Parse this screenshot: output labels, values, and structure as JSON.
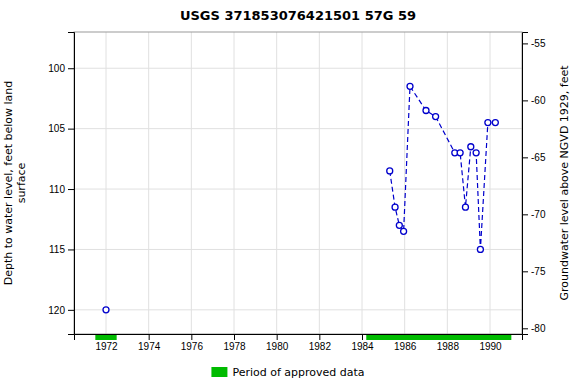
{
  "chart_data": {
    "type": "line",
    "title": "USGS 371853076421501 57G 59",
    "ylabel": "Depth to water level, feet below land\nsurface",
    "y2label": "Groundwater level above NGVD 1929, feet",
    "xlim": [
      1970.5,
      1991.5
    ],
    "ylim": [
      122.0,
      97.0
    ],
    "y2lim": [
      -80.5,
      -54.0
    ],
    "xticks": [
      1972,
      1974,
      1976,
      1978,
      1980,
      1982,
      1984,
      1986,
      1988,
      1990
    ],
    "yticks": [
      100,
      105,
      110,
      115,
      120
    ],
    "y2ticks": [
      -55,
      -60,
      -65,
      -70,
      -75,
      -80
    ],
    "grid": true,
    "legend": "bottom",
    "series": [
      {
        "x": [
          1972.0
        ],
        "values": [
          120.0
        ],
        "color": "#0000CC",
        "marker": "circle",
        "line_style": "dashed"
      },
      {
        "x": [
          1985.3,
          1985.55,
          1985.75,
          1985.95,
          1986.25,
          1987.0,
          1987.45,
          1988.35,
          1988.6,
          1988.85,
          1989.1,
          1989.35,
          1989.55,
          1989.9,
          1990.25
        ],
        "values": [
          108.5,
          111.5,
          113.0,
          113.5,
          101.5,
          103.5,
          104.0,
          107.0,
          107.0,
          111.5,
          106.5,
          107.0,
          115.0,
          104.5,
          104.5
        ],
        "color": "#0000CC",
        "marker": "circle",
        "line_style": "dashed"
      },
      {
        "name": "Period of approved data",
        "type": "span",
        "color": "#00BB00",
        "x": [
          [
            1971.5,
            1972.5
          ],
          [
            1984.2,
            1991.0
          ]
        ]
      }
    ]
  }
}
